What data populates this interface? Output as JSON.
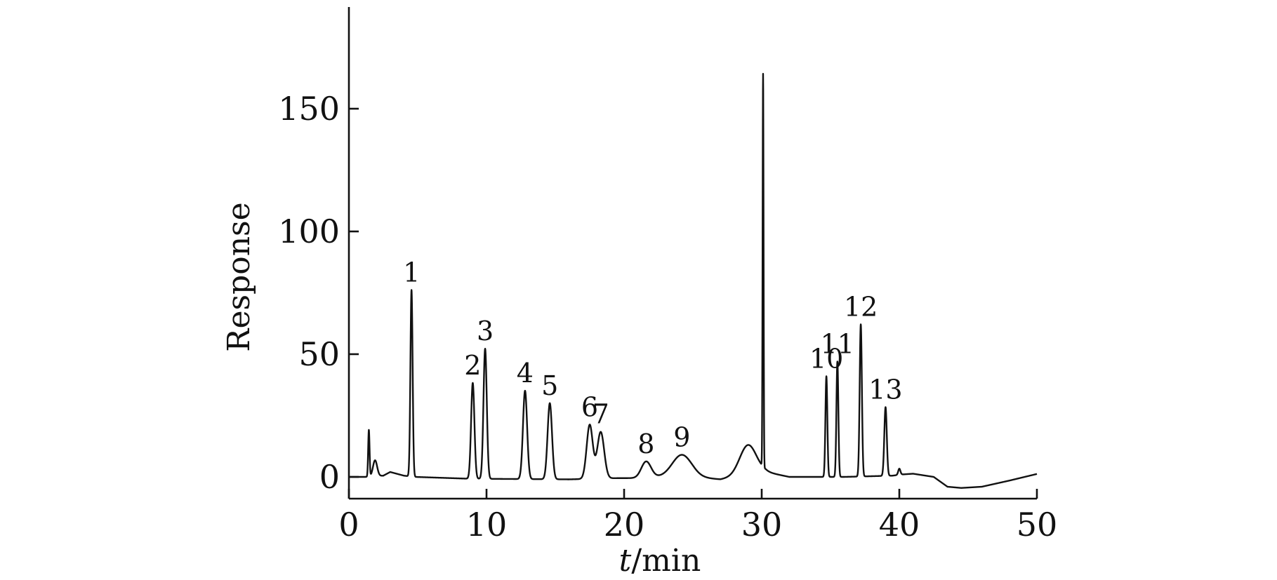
{
  "chart_data": {
    "type": "line",
    "title": "",
    "xlabel_italic": "t",
    "xlabel_unit": "/min",
    "ylabel": "Response",
    "xlim": [
      0,
      50
    ],
    "ylim": [
      -10,
      190
    ],
    "x_ticks": [
      0,
      10,
      20,
      30,
      40,
      50
    ],
    "y_ticks": [
      0,
      50,
      100,
      150
    ],
    "grid": false,
    "legend": "none",
    "baseline": [
      [
        0,
        0
      ],
      [
        1.2,
        0
      ],
      [
        2.5,
        0.5
      ],
      [
        3,
        2
      ],
      [
        4,
        0.5
      ],
      [
        4.8,
        0
      ],
      [
        8.5,
        -0.7
      ],
      [
        10.5,
        -0.8
      ],
      [
        16,
        -1
      ],
      [
        19.5,
        -0.5
      ],
      [
        21,
        -0.5
      ],
      [
        22,
        0
      ],
      [
        23,
        0
      ],
      [
        25,
        0
      ],
      [
        27,
        -1
      ],
      [
        28,
        0
      ],
      [
        30,
        2
      ],
      [
        30.3,
        2
      ],
      [
        32,
        0
      ],
      [
        34,
        0
      ],
      [
        36,
        0
      ],
      [
        39.5,
        0.5
      ],
      [
        40.2,
        1
      ],
      [
        41,
        1.3
      ],
      [
        42.5,
        0
      ],
      [
        43,
        -2
      ],
      [
        43.5,
        -4
      ],
      [
        44.5,
        -4.5
      ],
      [
        46,
        -4
      ],
      [
        48,
        -1.5
      ],
      [
        50,
        1.2
      ]
    ],
    "peaks": [
      {
        "t": 1.45,
        "height": 19,
        "width": 0.05
      },
      {
        "t": 1.9,
        "height": 6.5,
        "width": 0.15
      },
      {
        "t": 4.55,
        "height": 76,
        "width": 0.08,
        "label": "1"
      },
      {
        "t": 9.0,
        "height": 39,
        "width": 0.12,
        "label": "2"
      },
      {
        "t": 9.9,
        "height": 53,
        "width": 0.12,
        "label": "3"
      },
      {
        "t": 12.8,
        "height": 36,
        "width": 0.15,
        "label": "4"
      },
      {
        "t": 14.6,
        "height": 31,
        "width": 0.16,
        "label": "5"
      },
      {
        "t": 17.5,
        "height": 22,
        "width": 0.22,
        "label": "6"
      },
      {
        "t": 18.3,
        "height": 19,
        "width": 0.25,
        "label": "7"
      },
      {
        "t": 21.6,
        "height": 6.5,
        "width": 0.35,
        "label": "8"
      },
      {
        "t": 24.2,
        "height": 9,
        "width": 0.7,
        "label": "9"
      },
      {
        "t": 29.0,
        "height": 12,
        "width": 0.6
      },
      {
        "t": 30.1,
        "height": 160,
        "width": 0.035
      },
      {
        "t": 34.7,
        "height": 41,
        "width": 0.07,
        "label": "10"
      },
      {
        "t": 35.5,
        "height": 47,
        "width": 0.07,
        "label": "11"
      },
      {
        "t": 37.2,
        "height": 62,
        "width": 0.08,
        "label": "12"
      },
      {
        "t": 39.0,
        "height": 28,
        "width": 0.09,
        "label": "13"
      },
      {
        "t": 40.0,
        "height": 2.5,
        "width": 0.08
      }
    ]
  }
}
